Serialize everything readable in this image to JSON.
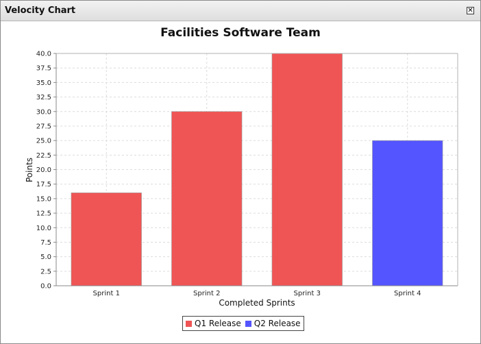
{
  "window": {
    "title": "Velocity Chart",
    "close_glyph": "✕"
  },
  "chart_data": {
    "type": "bar",
    "title": "Facilities Software Team",
    "xlabel": "Completed Sprints",
    "ylabel": "Points",
    "categories": [
      "Sprint 1",
      "Sprint 2",
      "Sprint 3",
      "Sprint 4"
    ],
    "values": [
      16,
      30,
      40,
      25
    ],
    "series": [
      {
        "name": "Q1 Release",
        "color": "#f05555",
        "indices": [
          0,
          1,
          2
        ]
      },
      {
        "name": "Q2 Release",
        "color": "#5555ff",
        "indices": [
          3
        ]
      }
    ],
    "ylim": [
      0,
      40
    ],
    "ytick_step": 2.5,
    "grid": true,
    "legend_position": "bottom"
  }
}
